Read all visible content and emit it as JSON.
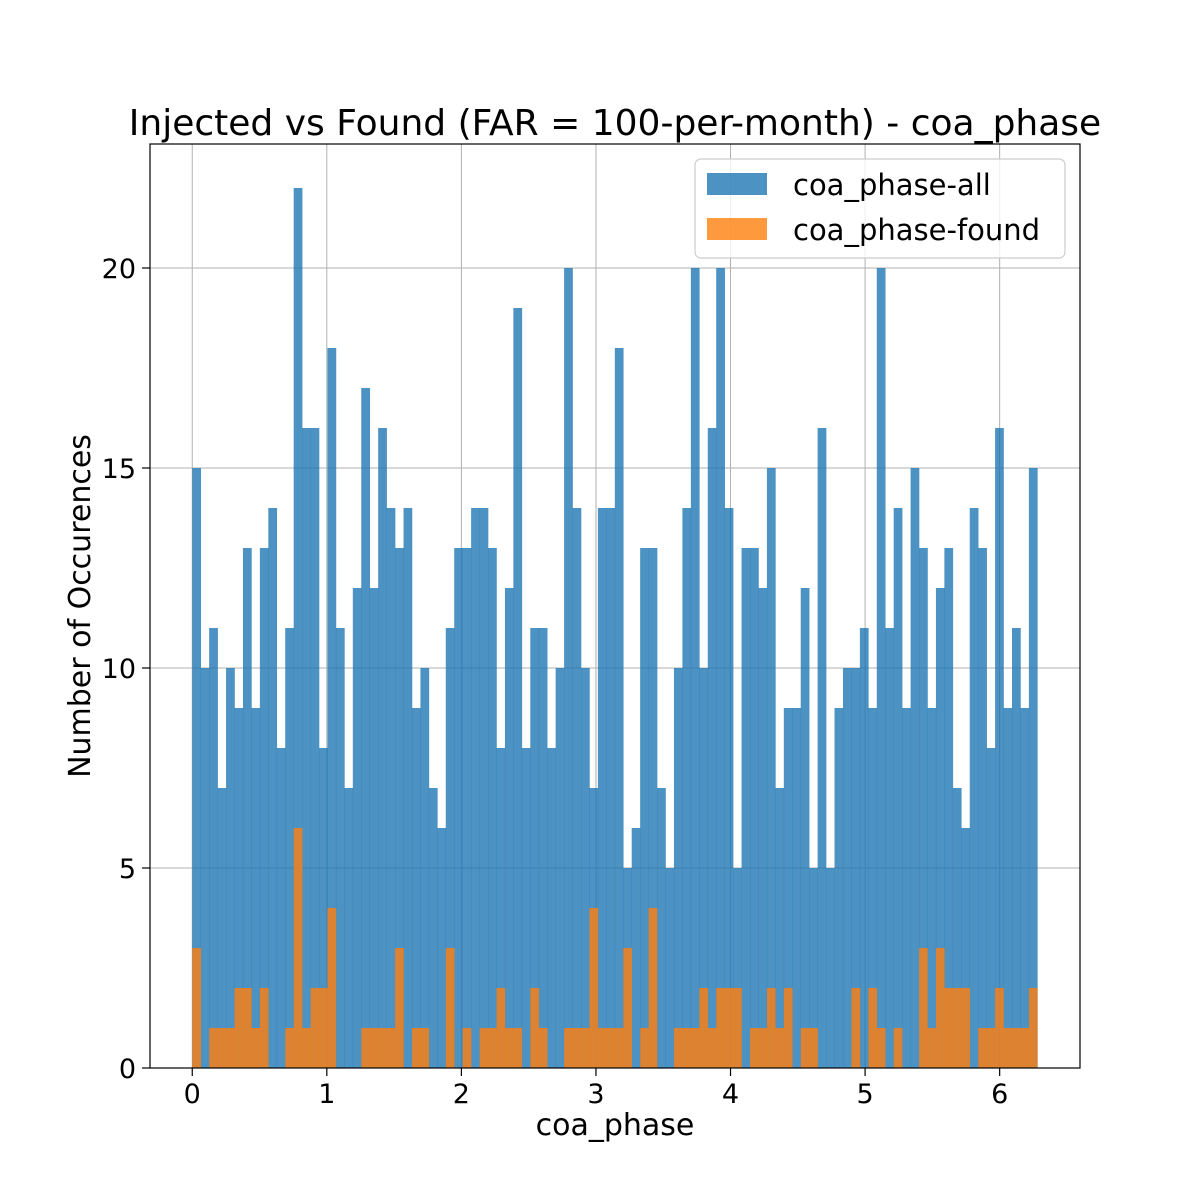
{
  "chart_data": {
    "type": "bar",
    "title": "Injected vs Found (FAR = 100-per-month) - coa_phase",
    "xlabel": "coa_phase",
    "ylabel": "Number of Occurences",
    "xlim": [
      -0.314,
      6.597
    ],
    "ylim": [
      0,
      23.1
    ],
    "xticks": [
      0,
      1,
      2,
      3,
      4,
      5,
      6
    ],
    "yticks": [
      0,
      5,
      10,
      15,
      20
    ],
    "grid": true,
    "legend_position": "top-right",
    "bin_start": 0.0,
    "bin_width": 0.0628,
    "series": [
      {
        "name": "coa_phase-all",
        "color": "#1f77b4",
        "values": [
          15,
          10,
          11,
          7,
          10,
          9,
          13,
          9,
          13,
          14,
          8,
          11,
          22,
          16,
          16,
          8,
          18,
          11,
          7,
          12,
          17,
          12,
          16,
          14,
          13,
          14,
          9,
          10,
          7,
          6,
          11,
          13,
          13,
          14,
          14,
          13,
          8,
          12,
          19,
          8,
          11,
          11,
          8,
          10,
          20,
          14,
          10,
          7,
          14,
          14,
          18,
          5,
          6,
          13,
          13,
          7,
          5,
          10,
          14,
          20,
          10,
          16,
          20,
          14,
          5,
          13,
          13,
          12,
          15,
          7,
          9,
          9,
          12,
          5,
          16,
          5,
          9,
          10,
          10,
          11,
          9,
          20,
          11,
          14,
          9,
          15,
          13,
          9,
          12,
          13,
          7,
          6,
          14,
          13,
          8,
          16,
          9,
          11,
          9,
          15
        ]
      },
      {
        "name": "coa_phase-found",
        "color": "#ff7f0e",
        "values": [
          3,
          0,
          1,
          1,
          1,
          2,
          2,
          1,
          2,
          0,
          0,
          1,
          6,
          1,
          2,
          2,
          4,
          0,
          0,
          0,
          1,
          1,
          1,
          1,
          3,
          0,
          1,
          1,
          0,
          0,
          3,
          0,
          1,
          0,
          1,
          1,
          2,
          1,
          1,
          0,
          2,
          1,
          0,
          0,
          1,
          1,
          1,
          4,
          1,
          1,
          1,
          3,
          0,
          1,
          4,
          0,
          0,
          1,
          1,
          1,
          2,
          1,
          2,
          2,
          2,
          0,
          1,
          1,
          2,
          1,
          2,
          0,
          1,
          1,
          0,
          0,
          0,
          0,
          2,
          0,
          2,
          1,
          0,
          1,
          0,
          0,
          3,
          1,
          3,
          2,
          2,
          2,
          0,
          1,
          1,
          2,
          1,
          1,
          1,
          2
        ]
      }
    ]
  }
}
